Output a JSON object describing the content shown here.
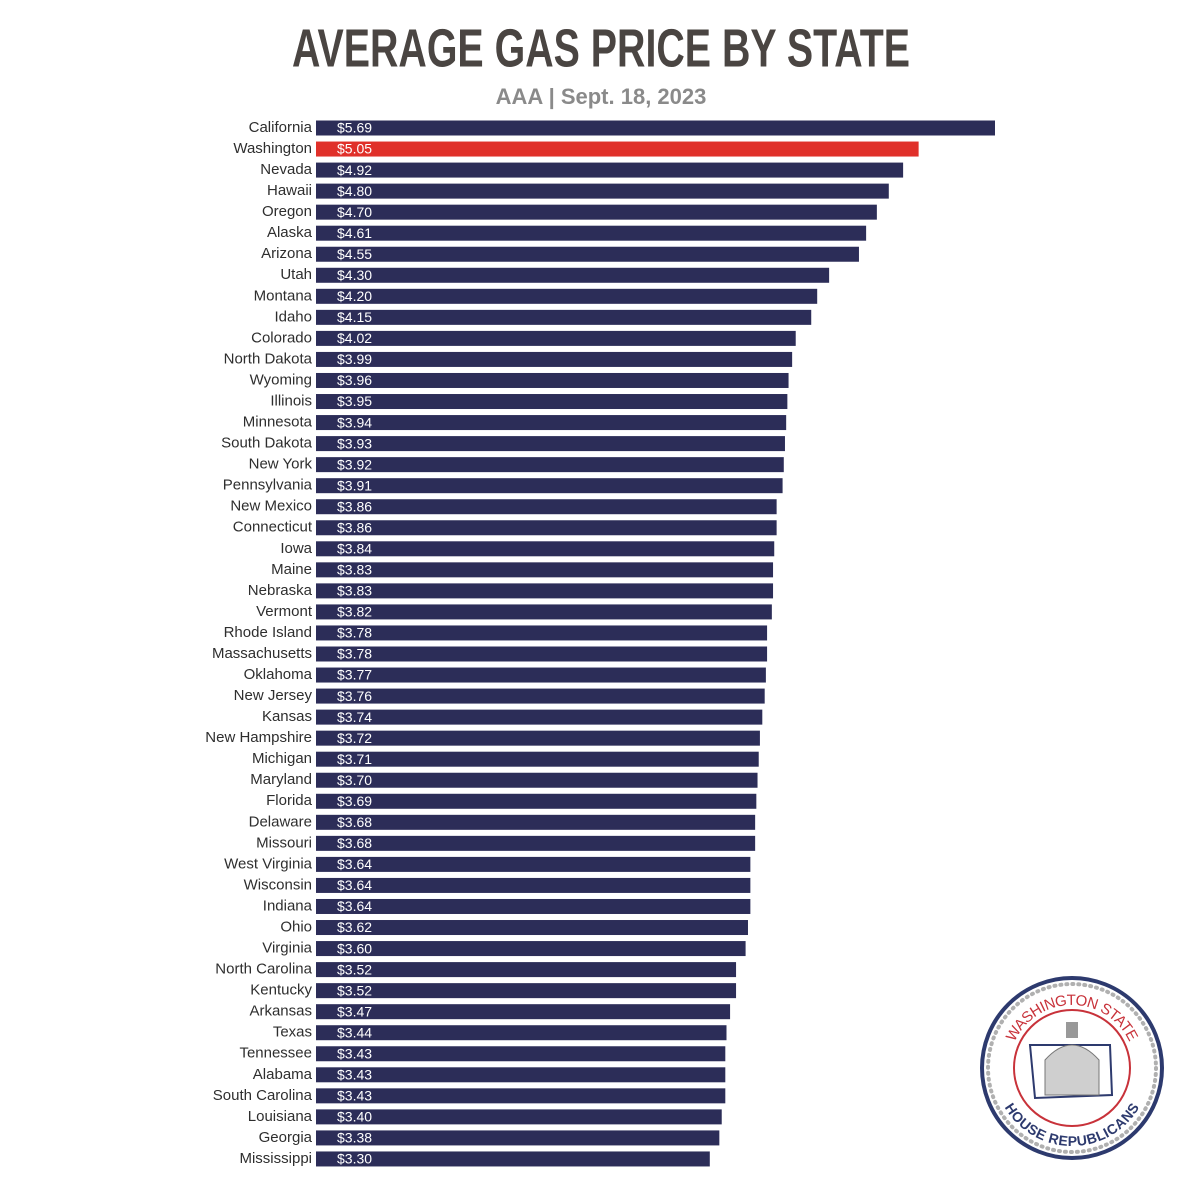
{
  "chart_data": {
    "type": "bar",
    "orientation": "horizontal",
    "title": "AVERAGE GAS PRICE BY STATE",
    "subtitle": "AAA | Sept. 18, 2023",
    "categories": [
      "California",
      "Washington",
      "Nevada",
      "Hawaii",
      "Oregon",
      "Alaska",
      "Arizona",
      "Utah",
      "Montana",
      "Idaho",
      "Colorado",
      "North Dakota",
      "Wyoming",
      "Illinois",
      "Minnesota",
      "South Dakota",
      "New York",
      "Pennsylvania",
      "New Mexico",
      "Connecticut",
      "Iowa",
      "Maine",
      "Nebraska",
      "Vermont",
      "Rhode Island",
      "Massachusetts",
      "Oklahoma",
      "New Jersey",
      "Kansas",
      "New Hampshire",
      "Michigan",
      "Maryland",
      "Florida",
      "Delaware",
      "Missouri",
      "West Virginia",
      "Wisconsin",
      "Indiana",
      "Ohio",
      "Virginia",
      "North Carolina",
      "Kentucky",
      "Arkansas",
      "Texas",
      "Tennessee",
      "Alabama",
      "South Carolina",
      "Louisiana",
      "Georgia",
      "Mississippi"
    ],
    "values": [
      5.69,
      5.05,
      4.92,
      4.8,
      4.7,
      4.61,
      4.55,
      4.3,
      4.2,
      4.15,
      4.02,
      3.99,
      3.96,
      3.95,
      3.94,
      3.93,
      3.92,
      3.91,
      3.86,
      3.86,
      3.84,
      3.83,
      3.83,
      3.82,
      3.78,
      3.78,
      3.77,
      3.76,
      3.74,
      3.72,
      3.71,
      3.7,
      3.69,
      3.68,
      3.68,
      3.64,
      3.64,
      3.64,
      3.62,
      3.6,
      3.52,
      3.52,
      3.47,
      3.44,
      3.43,
      3.43,
      3.43,
      3.4,
      3.38,
      3.3
    ],
    "value_labels": [
      "$5.69",
      "$5.05",
      "$4.92",
      "$4.80",
      "$4.70",
      "$4.61",
      "$4.55",
      "$4.30",
      "$4.20",
      "$4.15",
      "$4.02",
      "$3.99",
      "$3.96",
      "$3.95",
      "$3.94",
      "$3.93",
      "$3.92",
      "$3.91",
      "$3.86",
      "$3.86",
      "$3.84",
      "$3.83",
      "$3.83",
      "$3.82",
      "$3.78",
      "$3.78",
      "$3.77",
      "$3.76",
      "$3.74",
      "$3.72",
      "$3.71",
      "$3.70",
      "$3.69",
      "$3.68",
      "$3.68",
      "$3.64",
      "$3.64",
      "$3.64",
      "$3.62",
      "$3.60",
      "$3.52",
      "$3.52",
      "$3.47",
      "$3.44",
      "$3.43",
      "$3.43",
      "$3.43",
      "$3.40",
      "$3.38",
      "$3.30"
    ],
    "colors": [
      "#2c2d58",
      "#e0302a",
      "#2c2d58",
      "#2c2d58",
      "#2c2d58",
      "#2c2d58",
      "#2c2d58",
      "#2c2d58",
      "#2c2d58",
      "#2c2d58",
      "#2c2d58",
      "#2c2d58",
      "#2c2d58",
      "#2c2d58",
      "#2c2d58",
      "#2c2d58",
      "#2c2d58",
      "#2c2d58",
      "#2c2d58",
      "#2c2d58",
      "#2c2d58",
      "#2c2d58",
      "#2c2d58",
      "#2c2d58",
      "#2c2d58",
      "#2c2d58",
      "#2c2d58",
      "#2c2d58",
      "#2c2d58",
      "#2c2d58",
      "#2c2d58",
      "#2c2d58",
      "#2c2d58",
      "#2c2d58",
      "#2c2d58",
      "#2c2d58",
      "#2c2d58",
      "#2c2d58",
      "#2c2d58",
      "#2c2d58",
      "#2c2d58",
      "#2c2d58",
      "#2c2d58",
      "#2c2d58",
      "#2c2d58",
      "#2c2d58",
      "#2c2d58",
      "#2c2d58",
      "#2c2d58",
      "#2c2d58"
    ]
  },
  "logo": {
    "top": "WASHINGTON STATE",
    "bottom": "HOUSE REPUBLICANS"
  }
}
